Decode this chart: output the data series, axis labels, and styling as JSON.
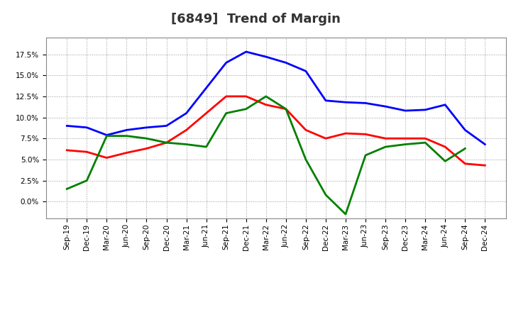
{
  "title": "[6849]  Trend of Margin",
  "x_labels": [
    "Sep-19",
    "Dec-19",
    "Mar-20",
    "Jun-20",
    "Sep-20",
    "Dec-20",
    "Mar-21",
    "Jun-21",
    "Sep-21",
    "Dec-21",
    "Mar-22",
    "Jun-22",
    "Sep-22",
    "Dec-22",
    "Mar-23",
    "Jun-23",
    "Sep-23",
    "Dec-23",
    "Mar-24",
    "Jun-24",
    "Sep-24",
    "Dec-24"
  ],
  "ordinary_income": [
    9.0,
    8.8,
    7.9,
    8.5,
    8.8,
    9.0,
    10.5,
    13.5,
    16.5,
    17.8,
    17.2,
    16.5,
    15.5,
    12.0,
    11.8,
    11.7,
    11.3,
    10.8,
    10.9,
    11.5,
    8.5,
    6.8
  ],
  "net_income": [
    6.1,
    5.9,
    5.2,
    5.8,
    6.3,
    7.0,
    8.5,
    10.5,
    12.5,
    12.5,
    11.5,
    11.0,
    8.5,
    7.5,
    8.1,
    8.0,
    7.5,
    7.5,
    7.5,
    6.5,
    4.5,
    4.3
  ],
  "operating_cashflow": [
    1.5,
    2.5,
    7.8,
    7.8,
    7.5,
    7.0,
    6.8,
    6.5,
    10.5,
    11.0,
    12.5,
    11.0,
    5.0,
    0.8,
    -1.5,
    5.5,
    6.5,
    6.8,
    7.0,
    4.8,
    6.3,
    null
  ],
  "colors": {
    "ordinary_income": "#0000ff",
    "net_income": "#ff0000",
    "operating_cashflow": "#008000"
  },
  "ylim": [
    -2.0,
    19.5
  ],
  "yticks": [
    0.0,
    2.5,
    5.0,
    7.5,
    10.0,
    12.5,
    15.0,
    17.5
  ],
  "background_color": "#ffffff",
  "grid_color": "#999999",
  "title_fontsize": 13,
  "title_color": "#333333",
  "tick_fontsize": 7.5,
  "legend_fontsize": 9
}
